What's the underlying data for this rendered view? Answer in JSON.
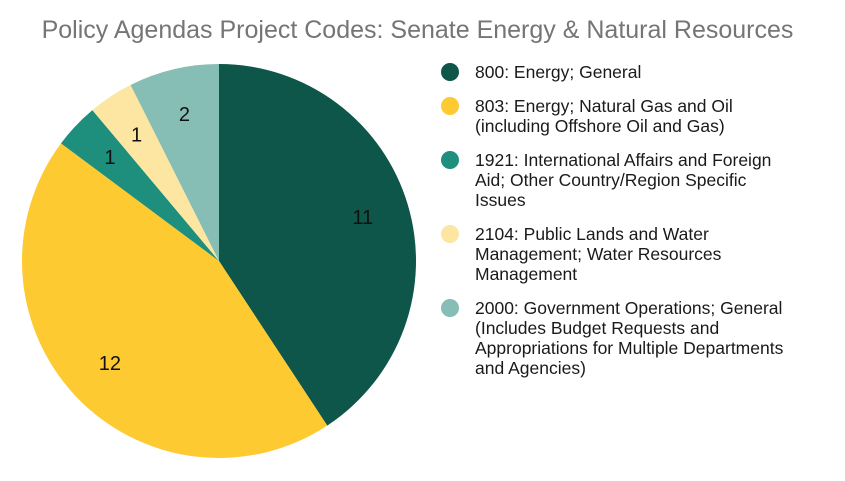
{
  "chart_data": {
    "type": "pie",
    "title": "Policy Agendas Project Codes: Senate Energy & Natural Resources",
    "slices": [
      {
        "label": "800: Energy; General",
        "value": 11,
        "color": "#0d5649"
      },
      {
        "label": "803: Energy; Natural Gas and Oil (including Offshore Oil and Gas)",
        "value": 12,
        "color": "#fdca32"
      },
      {
        "label": "1921: International Affairs and Foreign Aid; Other Country/Region Specific Issues",
        "value": 1,
        "color": "#1e8f7c"
      },
      {
        "label": "2104: Public Lands and Water Management; Water Resources Management",
        "value": 1,
        "color": "#fce6a2"
      },
      {
        "label": "2000: Government Operations; General (Includes Budget Requests and Appropriations for Multiple Departments and Agencies)",
        "value": 2,
        "color": "#86bdb4"
      }
    ],
    "legend_position": "right",
    "data_labels": "inside"
  },
  "legend": {
    "items": [
      {
        "lines": [
          "800: Energy; General"
        ],
        "color": "#0d5649"
      },
      {
        "lines": [
          "803: Energy; Natural Gas and Oil",
          "(including Offshore Oil and Gas)"
        ],
        "color": "#fdca32"
      },
      {
        "lines": [
          "1921: International Affairs and Foreign",
          "Aid; Other Country/Region Specific",
          "Issues"
        ],
        "color": "#1e8f7c"
      },
      {
        "lines": [
          "2104: Public Lands and Water",
          "Management; Water Resources",
          "Management"
        ],
        "color": "#fce6a2"
      },
      {
        "lines": [
          "2000: Government Operations; General",
          "(Includes Budget Requests and",
          "Appropriations for Multiple Departments",
          "and Agencies)"
        ],
        "color": "#86bdb4"
      }
    ]
  }
}
